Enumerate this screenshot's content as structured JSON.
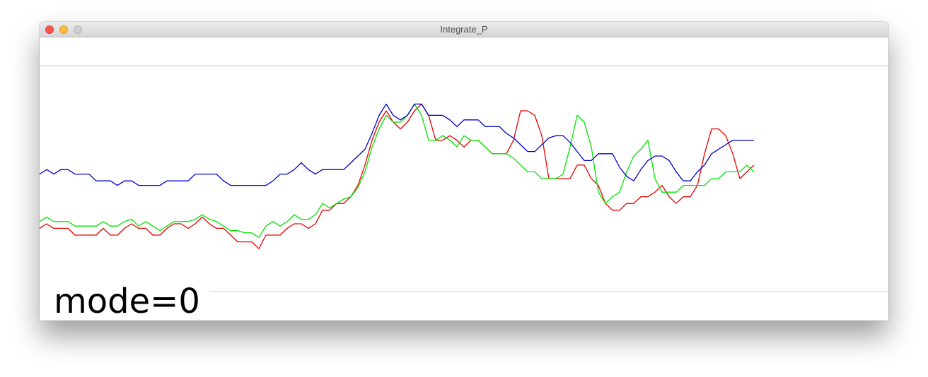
{
  "window": {
    "title": "Integrate_P"
  },
  "status": {
    "mode_text": "mode=0"
  },
  "colors": {
    "red": "#e60000",
    "green": "#00e600",
    "blue": "#0000cc",
    "guide": "#c8c8c8"
  },
  "plot": {
    "series": [
      {
        "id": "red",
        "color": "#e60000",
        "y": [
          0.72,
          0.7,
          0.72,
          0.72,
          0.72,
          0.75,
          0.75,
          0.75,
          0.75,
          0.72,
          0.75,
          0.75,
          0.72,
          0.7,
          0.72,
          0.72,
          0.75,
          0.75,
          0.72,
          0.7,
          0.7,
          0.72,
          0.7,
          0.67,
          0.7,
          0.72,
          0.72,
          0.75,
          0.78,
          0.78,
          0.78,
          0.81,
          0.75,
          0.75,
          0.75,
          0.72,
          0.7,
          0.7,
          0.72,
          0.7,
          0.64,
          0.64,
          0.61,
          0.61,
          0.58,
          0.53,
          0.44,
          0.33,
          0.25,
          0.2,
          0.25,
          0.28,
          0.25,
          0.2,
          0.17,
          0.22,
          0.33,
          0.33,
          0.31,
          0.33,
          0.36,
          0.33,
          0.33,
          0.36,
          0.39,
          0.39,
          0.39,
          0.33,
          0.2,
          0.2,
          0.22,
          0.31,
          0.5,
          0.5,
          0.5,
          0.5,
          0.44,
          0.44,
          0.5,
          0.53,
          0.61,
          0.64,
          0.64,
          0.61,
          0.61,
          0.58,
          0.58,
          0.56,
          0.53,
          0.58,
          0.61,
          0.58,
          0.58,
          0.53,
          0.39,
          0.28,
          0.28,
          0.31,
          0.39,
          0.5,
          0.47,
          0.44
        ]
      },
      {
        "id": "green",
        "color": "#00e600",
        "y": [
          0.69,
          0.67,
          0.69,
          0.69,
          0.69,
          0.71,
          0.71,
          0.71,
          0.71,
          0.69,
          0.71,
          0.71,
          0.69,
          0.68,
          0.71,
          0.69,
          0.71,
          0.73,
          0.71,
          0.69,
          0.69,
          0.69,
          0.68,
          0.66,
          0.68,
          0.69,
          0.71,
          0.73,
          0.73,
          0.74,
          0.74,
          0.76,
          0.71,
          0.69,
          0.71,
          0.69,
          0.66,
          0.68,
          0.68,
          0.66,
          0.61,
          0.63,
          0.61,
          0.59,
          0.58,
          0.54,
          0.47,
          0.36,
          0.28,
          0.22,
          0.25,
          0.25,
          0.22,
          0.17,
          0.22,
          0.33,
          0.33,
          0.31,
          0.33,
          0.36,
          0.31,
          0.33,
          0.33,
          0.36,
          0.39,
          0.39,
          0.39,
          0.41,
          0.44,
          0.47,
          0.47,
          0.5,
          0.5,
          0.5,
          0.48,
          0.36,
          0.22,
          0.25,
          0.36,
          0.56,
          0.61,
          0.58,
          0.56,
          0.47,
          0.4,
          0.37,
          0.33,
          0.5,
          0.56,
          0.56,
          0.56,
          0.53,
          0.53,
          0.53,
          0.53,
          0.5,
          0.5,
          0.47,
          0.47,
          0.47,
          0.44,
          0.47
        ]
      },
      {
        "id": "blue",
        "color": "#0000cc",
        "y": [
          0.48,
          0.46,
          0.48,
          0.46,
          0.46,
          0.48,
          0.48,
          0.48,
          0.51,
          0.51,
          0.51,
          0.53,
          0.51,
          0.51,
          0.53,
          0.53,
          0.53,
          0.53,
          0.51,
          0.51,
          0.51,
          0.51,
          0.48,
          0.48,
          0.48,
          0.48,
          0.51,
          0.53,
          0.53,
          0.53,
          0.53,
          0.53,
          0.53,
          0.51,
          0.48,
          0.48,
          0.46,
          0.43,
          0.46,
          0.48,
          0.46,
          0.46,
          0.46,
          0.46,
          0.43,
          0.4,
          0.37,
          0.3,
          0.22,
          0.17,
          0.22,
          0.24,
          0.22,
          0.17,
          0.17,
          0.22,
          0.22,
          0.22,
          0.24,
          0.27,
          0.24,
          0.24,
          0.24,
          0.27,
          0.27,
          0.27,
          0.3,
          0.32,
          0.35,
          0.38,
          0.38,
          0.35,
          0.32,
          0.31,
          0.31,
          0.34,
          0.38,
          0.42,
          0.42,
          0.39,
          0.39,
          0.39,
          0.45,
          0.49,
          0.51,
          0.46,
          0.42,
          0.4,
          0.4,
          0.42,
          0.47,
          0.51,
          0.51,
          0.47,
          0.44,
          0.39,
          0.37,
          0.35,
          0.33,
          0.33,
          0.33,
          0.33
        ]
      }
    ]
  }
}
